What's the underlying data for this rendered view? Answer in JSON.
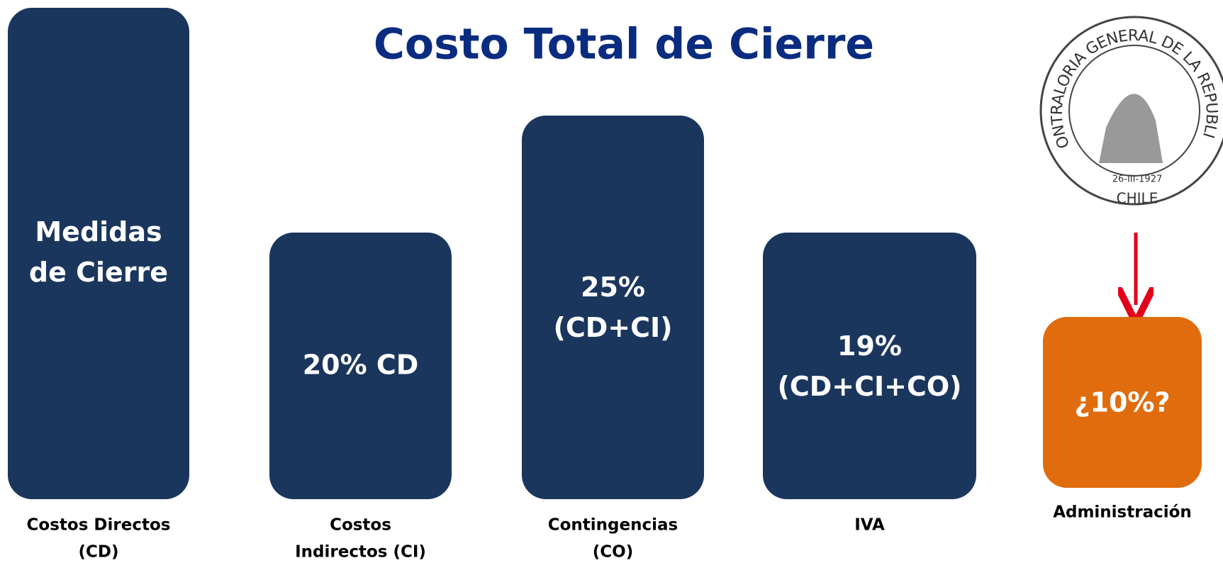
{
  "title": "Costo Total de Cierre",
  "boxes": [
    {
      "lines": [
        "Medidas",
        "de Cierre"
      ],
      "label": [
        "Costos Directos",
        "(CD)"
      ]
    },
    {
      "lines": [
        "20% CD"
      ],
      "label": [
        "Costos",
        "Indirectos (CI)"
      ]
    },
    {
      "lines": [
        "25%",
        "(CD+CI)"
      ],
      "label": [
        "Contingencias",
        "(CO)"
      ]
    },
    {
      "lines": [
        "19%",
        "(CD+CI+CO)"
      ],
      "label": [
        "IVA"
      ]
    },
    {
      "lines": [
        "¿10%?"
      ],
      "label": [
        "Administración"
      ]
    }
  ],
  "seal": {
    "ring": "CONTRALORIA GENERAL DE LA REPUBLICA",
    "date": "26-III-1927",
    "country": "CHILE"
  }
}
